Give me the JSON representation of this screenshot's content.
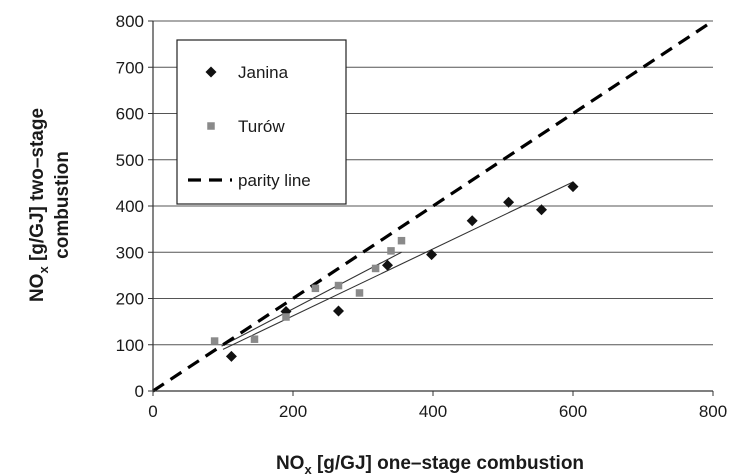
{
  "chart_data": {
    "type": "scatter",
    "xlim": [
      0,
      800
    ],
    "ylim": [
      0,
      800
    ],
    "xticks": [
      "0",
      "200",
      "400",
      "600",
      "800"
    ],
    "yticks": [
      "0",
      "100",
      "200",
      "300",
      "400",
      "500",
      "600",
      "700",
      "800"
    ],
    "grid": "horizontal",
    "legend_position": "top-left",
    "xlabel": {
      "main": "NO",
      "sub": "x",
      "rest": " [g/GJ]  one–stage combustion"
    },
    "ylabel": {
      "line1_main": "NO",
      "line1_sub": "x",
      "line1_rest": " [g/GJ]  two–stage",
      "line2": "combustion"
    },
    "series": [
      {
        "name": "Janina",
        "marker": "diamond",
        "color": "#111111",
        "points": [
          [
            112,
            75
          ],
          [
            190,
            172
          ],
          [
            265,
            173
          ],
          [
            335,
            272
          ],
          [
            398,
            295
          ],
          [
            456,
            368
          ],
          [
            508,
            408
          ],
          [
            555,
            392
          ],
          [
            600,
            442
          ]
        ],
        "trendline": [
          [
            100,
            90
          ],
          [
            600,
            452
          ]
        ]
      },
      {
        "name": "Turów",
        "marker": "square",
        "color": "#8a8a8a",
        "points": [
          [
            88,
            108
          ],
          [
            145,
            112
          ],
          [
            190,
            160
          ],
          [
            232,
            222
          ],
          [
            265,
            228
          ],
          [
            295,
            212
          ],
          [
            318,
            265
          ],
          [
            340,
            303
          ],
          [
            355,
            325
          ]
        ],
        "trendline": [
          [
            98,
            97
          ],
          [
            355,
            300
          ]
        ]
      },
      {
        "name": "parity line",
        "line": "dashed",
        "color": "#000000",
        "points": [
          [
            0,
            0
          ],
          [
            800,
            800
          ]
        ]
      }
    ]
  }
}
